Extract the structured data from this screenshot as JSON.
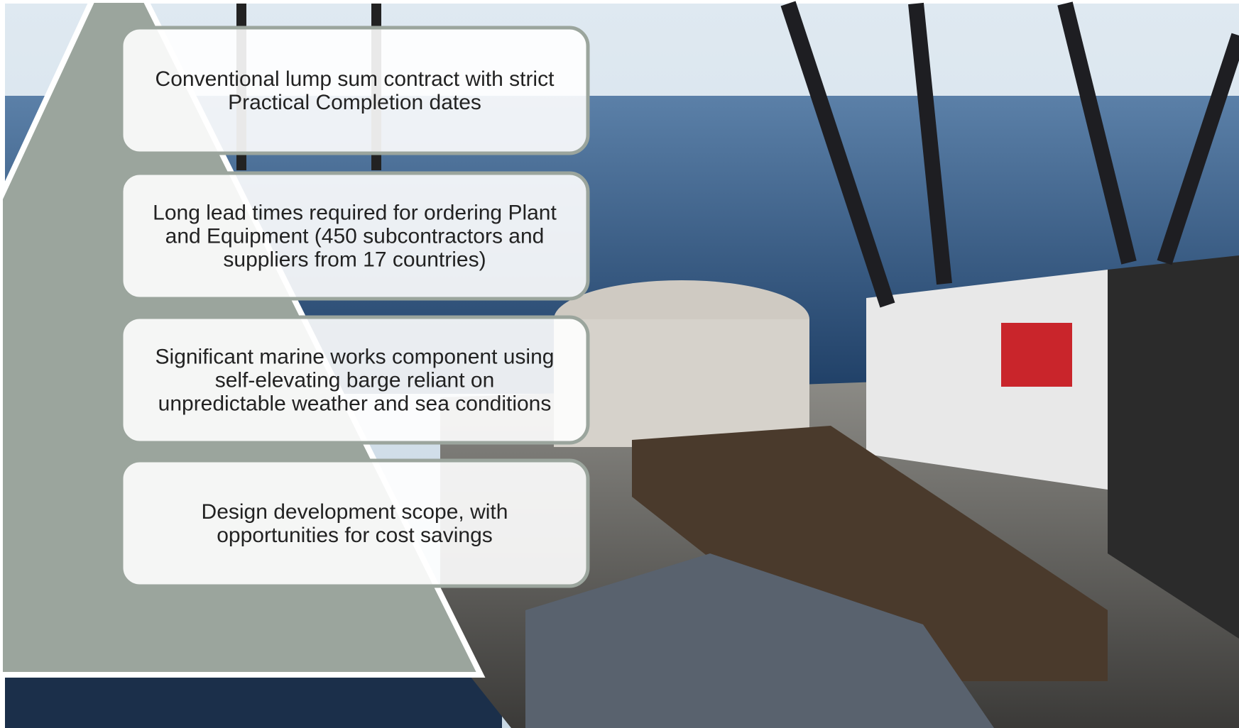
{
  "boxes": [
    {
      "lines": [
        "Conventional lump sum contract with strict",
        "Practical Completion dates"
      ]
    },
    {
      "lines": [
        "Long lead times required for ordering Plant",
        "and Equipment (450 subcontractors and",
        "suppliers from 17 countries)"
      ]
    },
    {
      "lines": [
        "Significant marine works component using",
        "self-elevating barge reliant on",
        "unpredictable weather and sea conditions"
      ]
    },
    {
      "lines": [
        "Design development scope, with",
        "opportunities for cost savings"
      ]
    }
  ]
}
